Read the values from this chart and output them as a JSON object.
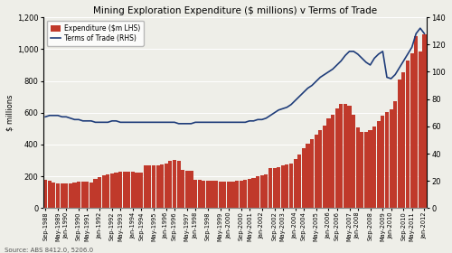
{
  "title": "Mining Exploration Expenditure ($ millions) v Terms of Trade",
  "ylabel_left": "$ millions",
  "source": "Source: ABS 8412.0, 5206.0",
  "legend": [
    "Expenditure ($m LHS)",
    "Terms of Trade (RHS)"
  ],
  "bar_color": "#c0392b",
  "line_color": "#1f3d7a",
  "ylim_left": [
    0,
    1200
  ],
  "ylim_right": [
    0,
    140
  ],
  "yticks_left": [
    0,
    200,
    400,
    600,
    800,
    1000,
    1200
  ],
  "yticks_right": [
    0,
    20,
    40,
    60,
    80,
    100,
    120,
    140
  ],
  "tick_labels": [
    "Sep-1988",
    "May-1989",
    "Jan-1990",
    "Sep-1990",
    "May-1991",
    "Jan-1992",
    "Sep-1992",
    "May-1993",
    "Jan-1994",
    "Sep-1994",
    "May-1995",
    "Jan-1996",
    "Sep-1996",
    "May-1997",
    "Jan-1998",
    "Sep-1998",
    "May-1999",
    "Jan-2000",
    "Sep-2000",
    "May-2001",
    "Jan-2002",
    "Sep-2002",
    "May-2003",
    "Jan-2004",
    "Sep-2004",
    "May-2005",
    "Jan-2006",
    "Sep-2006",
    "May-2007",
    "Jan-2008",
    "Sep-2008",
    "May-2009",
    "Jan-2010",
    "Sep-2010",
    "May-2011",
    "Jan-2012"
  ],
  "expenditure": [
    180,
    170,
    160,
    155,
    155,
    158,
    158,
    162,
    165,
    168,
    165,
    162,
    185,
    195,
    205,
    215,
    220,
    225,
    228,
    230,
    232,
    228,
    225,
    222,
    268,
    268,
    272,
    272,
    275,
    278,
    300,
    305,
    295,
    242,
    238,
    235,
    180,
    178,
    175,
    172,
    170,
    170,
    168,
    165,
    165,
    168,
    172,
    175,
    178,
    185,
    192,
    200,
    205,
    210,
    250,
    255,
    260,
    268,
    275,
    282,
    310,
    340,
    380,
    405,
    435,
    460,
    490,
    520,
    565,
    590,
    625,
    655,
    655,
    645,
    590,
    510,
    480,
    480,
    490,
    515,
    545,
    580,
    605,
    620,
    670,
    810,
    855,
    930,
    975,
    1080,
    985,
    1090
  ],
  "terms_of_trade": [
    67,
    68,
    68,
    68,
    67,
    67,
    66,
    65,
    65,
    64,
    64,
    64,
    63,
    63,
    63,
    63,
    64,
    64,
    63,
    63,
    63,
    63,
    63,
    63,
    63,
    63,
    63,
    63,
    63,
    63,
    63,
    63,
    62,
    62,
    62,
    62,
    63,
    63,
    63,
    63,
    63,
    63,
    63,
    63,
    63,
    63,
    63,
    63,
    63,
    64,
    64,
    65,
    65,
    66,
    68,
    70,
    72,
    73,
    74,
    76,
    79,
    82,
    85,
    88,
    90,
    93,
    96,
    98,
    100,
    102,
    105,
    108,
    112,
    115,
    115,
    113,
    110,
    107,
    105,
    110,
    113,
    115,
    96,
    95,
    98,
    103,
    108,
    113,
    118,
    128,
    132,
    128
  ],
  "n_bars": 92,
  "tick_positions_indices": [
    0,
    4,
    8,
    12,
    16,
    20,
    24,
    28,
    32,
    36,
    40,
    44,
    48,
    52,
    56,
    60,
    64,
    68,
    72,
    76,
    80,
    84,
    88,
    92,
    96,
    100,
    104,
    108,
    112,
    116,
    120,
    124,
    128,
    132,
    136,
    140
  ]
}
